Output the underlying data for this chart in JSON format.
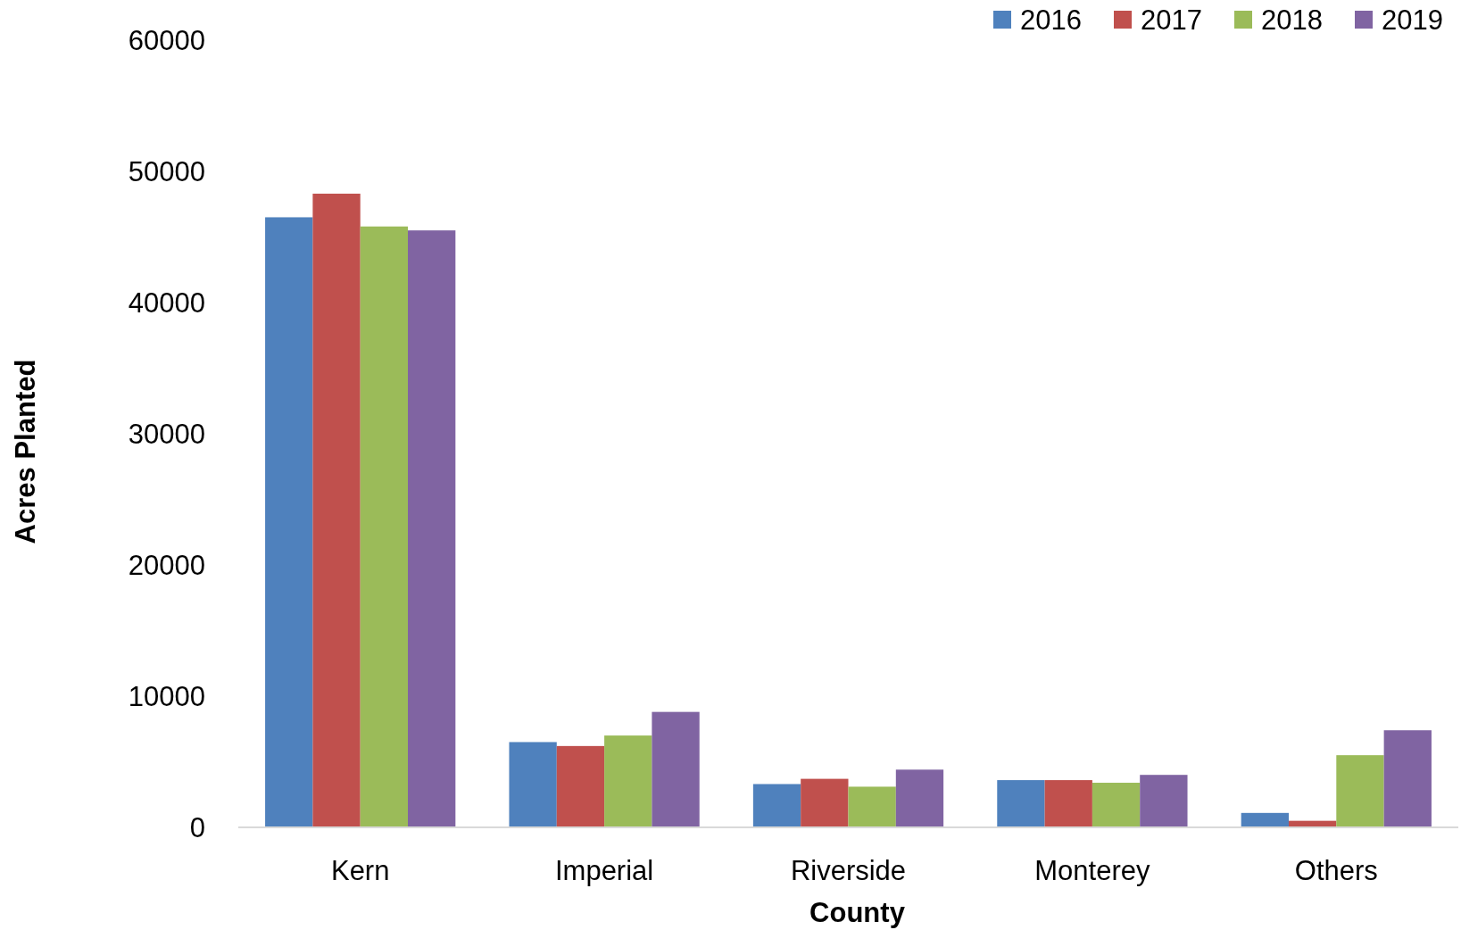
{
  "chart_data": {
    "type": "bar",
    "xlabel": "County",
    "ylabel": "Acres Planted",
    "categories": [
      "Kern",
      "Imperial",
      "Riverside",
      "Monterey",
      "Others"
    ],
    "series": [
      {
        "name": "2016",
        "color": "#4f81bd",
        "values": [
          46500,
          6500,
          3300,
          3600,
          1100
        ]
      },
      {
        "name": "2017",
        "color": "#c0504d",
        "values": [
          48300,
          6200,
          3700,
          3600,
          500
        ]
      },
      {
        "name": "2018",
        "color": "#9bbb59",
        "values": [
          45800,
          7000,
          3100,
          3400,
          5500
        ]
      },
      {
        "name": "2019",
        "color": "#8064a2",
        "values": [
          45500,
          8800,
          4400,
          4000,
          7400
        ]
      }
    ],
    "ylim": [
      0,
      60000
    ],
    "yticks": [
      0,
      10000,
      20000,
      30000,
      40000,
      50000,
      60000
    ],
    "legend": "top right"
  }
}
